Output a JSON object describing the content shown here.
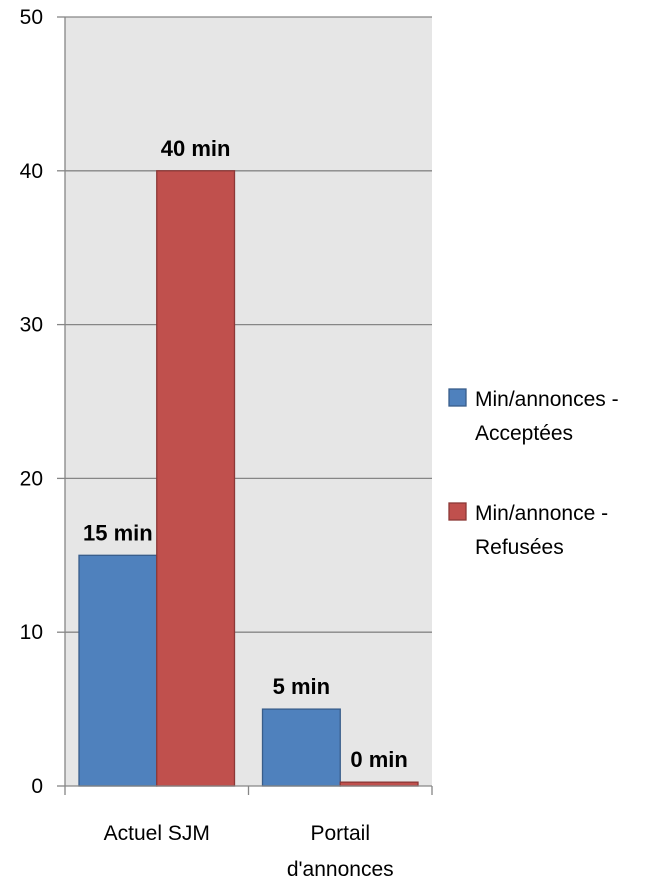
{
  "chart_data": {
    "type": "bar",
    "categories": [
      "Actuel SJM",
      "Portail|d'annonces"
    ],
    "series": [
      {
        "name": "Min/annonces -|Acceptées",
        "values": [
          15,
          5
        ],
        "labels": [
          "15 min",
          "5 min"
        ],
        "color": "#4F81BD",
        "border": "#385D8A"
      },
      {
        "name": "Min/annonce -|Refusées",
        "values": [
          40,
          0.25
        ],
        "labels": [
          "40 min",
          "0 min"
        ],
        "color": "#C0504D",
        "border": "#8C3836"
      }
    ],
    "ylim": [
      0,
      50
    ],
    "yticks": [
      0,
      10,
      20,
      30,
      40,
      50
    ],
    "plot_background": "#E6E6E6",
    "gridline_color": "#868686",
    "grid": true,
    "legend_position": "right"
  }
}
